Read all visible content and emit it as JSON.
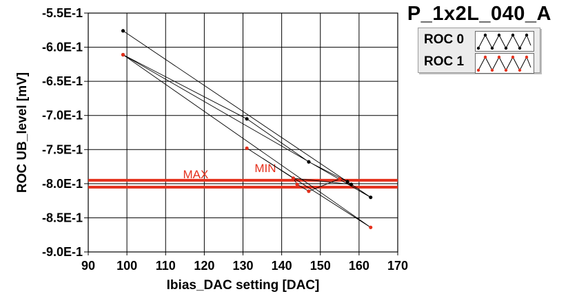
{
  "chart_data": {
    "type": "line",
    "title": "P_1x2L_040_A",
    "xlabel": "Ibias_DAC setting [DAC]",
    "ylabel": "ROC UB_level [mV]",
    "xlim": [
      90,
      170
    ],
    "ylim": [
      -0.9,
      -0.55
    ],
    "x_ticks": [
      "90",
      "100",
      "110",
      "120",
      "130",
      "140",
      "150",
      "160",
      "170"
    ],
    "y_ticks": [
      "-5.5E-1",
      "-6.0E-1",
      "-6.5E-1",
      "-7.0E-1",
      "-7.5E-1",
      "-8.0E-1",
      "-8.5E-1",
      "-9.0E-1"
    ],
    "grid": true,
    "legend_position": "top-right",
    "series": [
      {
        "name": "ROC 0",
        "color": "#000000",
        "points": [
          [
            99,
            -0.576
          ],
          [
            163,
            -0.82
          ],
          [
            99,
            -0.611
          ],
          [
            131,
            -0.705
          ],
          [
            147,
            -0.768
          ],
          [
            157,
            -0.797
          ],
          [
            158,
            -0.801
          ],
          [
            143,
            -0.792
          ]
        ]
      },
      {
        "name": "ROC 1",
        "color": "#e4301c",
        "points": [
          [
            99,
            -0.611
          ],
          [
            163,
            -0.864
          ],
          [
            131,
            -0.748
          ],
          [
            143,
            -0.792
          ],
          [
            144,
            -0.801
          ],
          [
            147,
            -0.811
          ],
          [
            155,
            -0.793
          ]
        ]
      }
    ],
    "limit_lines": [
      {
        "label": "MAX",
        "value": -0.795,
        "color": "#e4301c"
      },
      {
        "label": "MIN",
        "value": -0.805,
        "color": "#e4301c"
      }
    ]
  }
}
